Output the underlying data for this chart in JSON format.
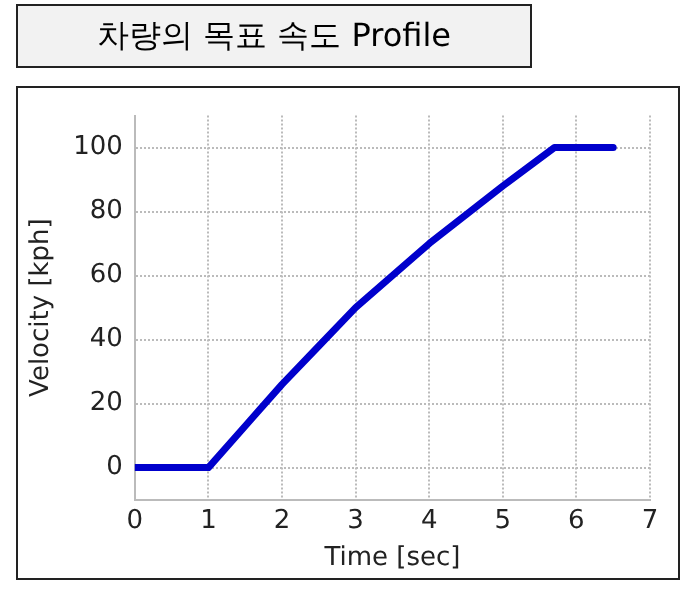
{
  "chart_data": {
    "type": "line",
    "title": "차량의 목표 속도 Profile",
    "xlabel": "Time [sec]",
    "ylabel": "Velocity [kph]",
    "x": [
      0,
      1,
      1.5,
      2,
      2.5,
      3,
      3.5,
      4,
      4.5,
      5,
      5.7,
      6.5
    ],
    "series": [
      {
        "color": "#0000cc",
        "values": [
          0,
          0,
          13,
          26,
          38,
          50,
          60,
          70,
          79,
          88,
          100,
          100
        ]
      }
    ],
    "xlim": [
      0,
      7
    ],
    "ylim": [
      -10,
      110
    ],
    "xticks": [
      0,
      1,
      2,
      3,
      4,
      5,
      6,
      7
    ],
    "yticks": [
      0,
      20,
      40,
      60,
      80,
      100
    ],
    "grid": true,
    "legend": false,
    "marker": "none",
    "line_style": "solid"
  }
}
